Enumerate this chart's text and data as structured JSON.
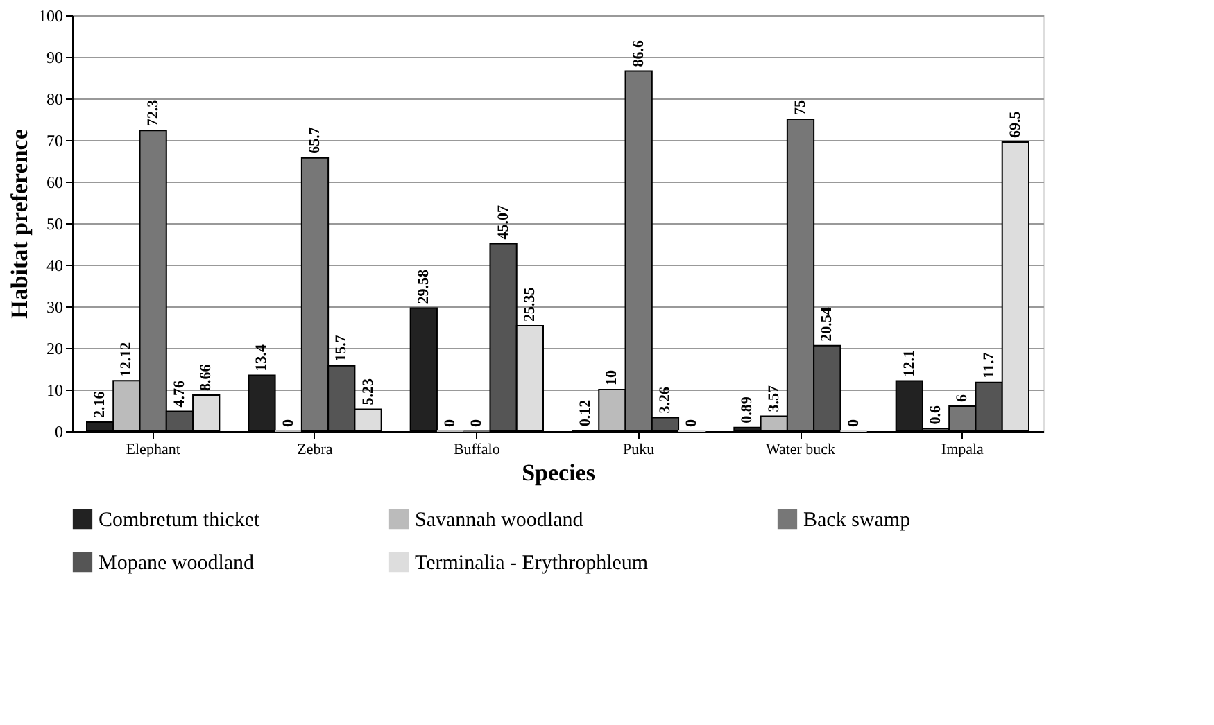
{
  "chart_data": {
    "type": "bar",
    "xlabel": "Species",
    "ylabel": "Habitat preference",
    "categories": [
      "Elephant",
      "Zebra",
      "Buffalo",
      "Puku",
      "Water buck",
      "Impala"
    ],
    "series": [
      {
        "name": "Combretum thicket",
        "color": "#222222",
        "values": [
          2.16,
          13.4,
          29.58,
          0.12,
          0.89,
          12.1
        ]
      },
      {
        "name": "Savannah woodland",
        "color": "#bbbbbb",
        "values": [
          12.12,
          0,
          0,
          10,
          3.57,
          0.6
        ]
      },
      {
        "name": "Back swamp",
        "color": "#777777",
        "values": [
          72.3,
          65.7,
          0,
          86.6,
          75,
          6
        ]
      },
      {
        "name": "Mopane woodland",
        "color": "#555555",
        "values": [
          4.76,
          15.7,
          45.07,
          3.26,
          20.54,
          11.7
        ]
      },
      {
        "name": "Terminalia - Erythrophleum",
        "color": "#dddddd",
        "values": [
          8.66,
          5.23,
          25.35,
          0,
          0,
          69.5
        ]
      }
    ],
    "ylim": [
      0,
      100
    ],
    "yticks": [
      0,
      10,
      20,
      30,
      40,
      50,
      60,
      70,
      80,
      90,
      100
    ],
    "grid": "y",
    "legend": "bottom",
    "data_labels": true
  }
}
